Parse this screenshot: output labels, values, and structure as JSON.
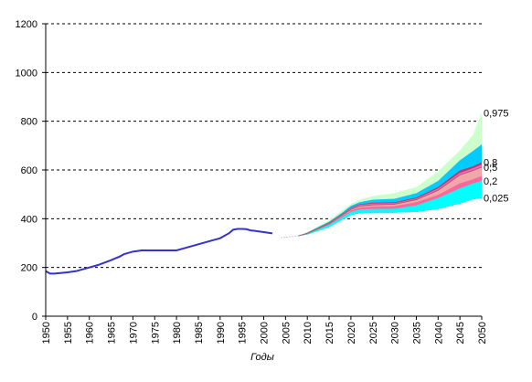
{
  "chart_data": {
    "type": "area",
    "title": "",
    "xlabel": "Годы",
    "ylabel": "",
    "xlim": [
      1950,
      2050
    ],
    "ylim": [
      0,
      1200
    ],
    "grid": "horizontal dashed",
    "x_ticks": [
      "1950",
      "1955",
      "1960",
      "1965",
      "1970",
      "1975",
      "1980",
      "1985",
      "1990",
      "1995",
      "2000",
      "2005",
      "2010",
      "2015",
      "2020",
      "2025",
      "2030",
      "2035",
      "2040",
      "2045",
      "2050"
    ],
    "y_ticks": [
      "0",
      "200",
      "400",
      "600",
      "800",
      "1000",
      "1200"
    ],
    "historical": {
      "color": "#3333cc",
      "x": [
        1950,
        1951,
        1952,
        1955,
        1957,
        1960,
        1962,
        1965,
        1967,
        1968,
        1970,
        1972,
        1975,
        1980,
        1982,
        1985,
        1988,
        1990,
        1992,
        1993,
        1994,
        1995,
        1996,
        1997,
        1998,
        2000,
        2002
      ],
      "y": [
        185,
        175,
        175,
        180,
        185,
        200,
        210,
        230,
        245,
        255,
        265,
        270,
        270,
        270,
        280,
        295,
        310,
        320,
        340,
        355,
        358,
        358,
        357,
        352,
        350,
        345,
        340
      ]
    },
    "projection_start": {
      "x": [
        2004,
        2008
      ],
      "y": [
        322,
        330
      ]
    },
    "bands": {
      "x": [
        2008,
        2010,
        2015,
        2018,
        2020,
        2022,
        2025,
        2030,
        2035,
        2040,
        2045,
        2048,
        2050
      ],
      "quantiles": [
        {
          "label": "0,975",
          "color": "#ccffcc",
          "y": [
            330,
            345,
            395,
            435,
            460,
            478,
            493,
            505,
            530,
            595,
            680,
            745,
            835
          ]
        },
        {
          "label": "",
          "color": "#00ccff",
          "y": [
            330,
            343,
            388,
            425,
            453,
            468,
            478,
            482,
            505,
            555,
            640,
            678,
            705
          ]
        },
        {
          "label": "0,8",
          "color": "#cc3366",
          "y": [
            330,
            342,
            385,
            420,
            446,
            460,
            466,
            468,
            487,
            530,
            598,
            615,
            632
          ]
        },
        {
          "label": "",
          "color": "#ff66cc",
          "y": [
            330,
            341,
            383,
            418,
            443,
            457,
            462,
            464,
            483,
            524,
            588,
            607,
            622
          ]
        },
        {
          "label": "0,5",
          "color": "#f2aaa8",
          "y": [
            330,
            340,
            380,
            415,
            438,
            452,
            457,
            460,
            478,
            517,
            580,
            598,
            612
          ]
        },
        {
          "label": "",
          "color": "#ff6699",
          "y": [
            330,
            339,
            378,
            411,
            433,
            446,
            450,
            452,
            468,
            498,
            545,
            562,
            575
          ]
        },
        {
          "label": "0,2",
          "color": "#00ffff",
          "y": [
            330,
            338,
            375,
            406,
            428,
            438,
            440,
            441,
            455,
            485,
            525,
            545,
            555
          ]
        },
        {
          "label": "0,025",
          "color": "#ffffff",
          "y": [
            330,
            335,
            365,
            395,
            415,
            423,
            425,
            425,
            428,
            440,
            462,
            480,
            485
          ]
        }
      ]
    }
  }
}
